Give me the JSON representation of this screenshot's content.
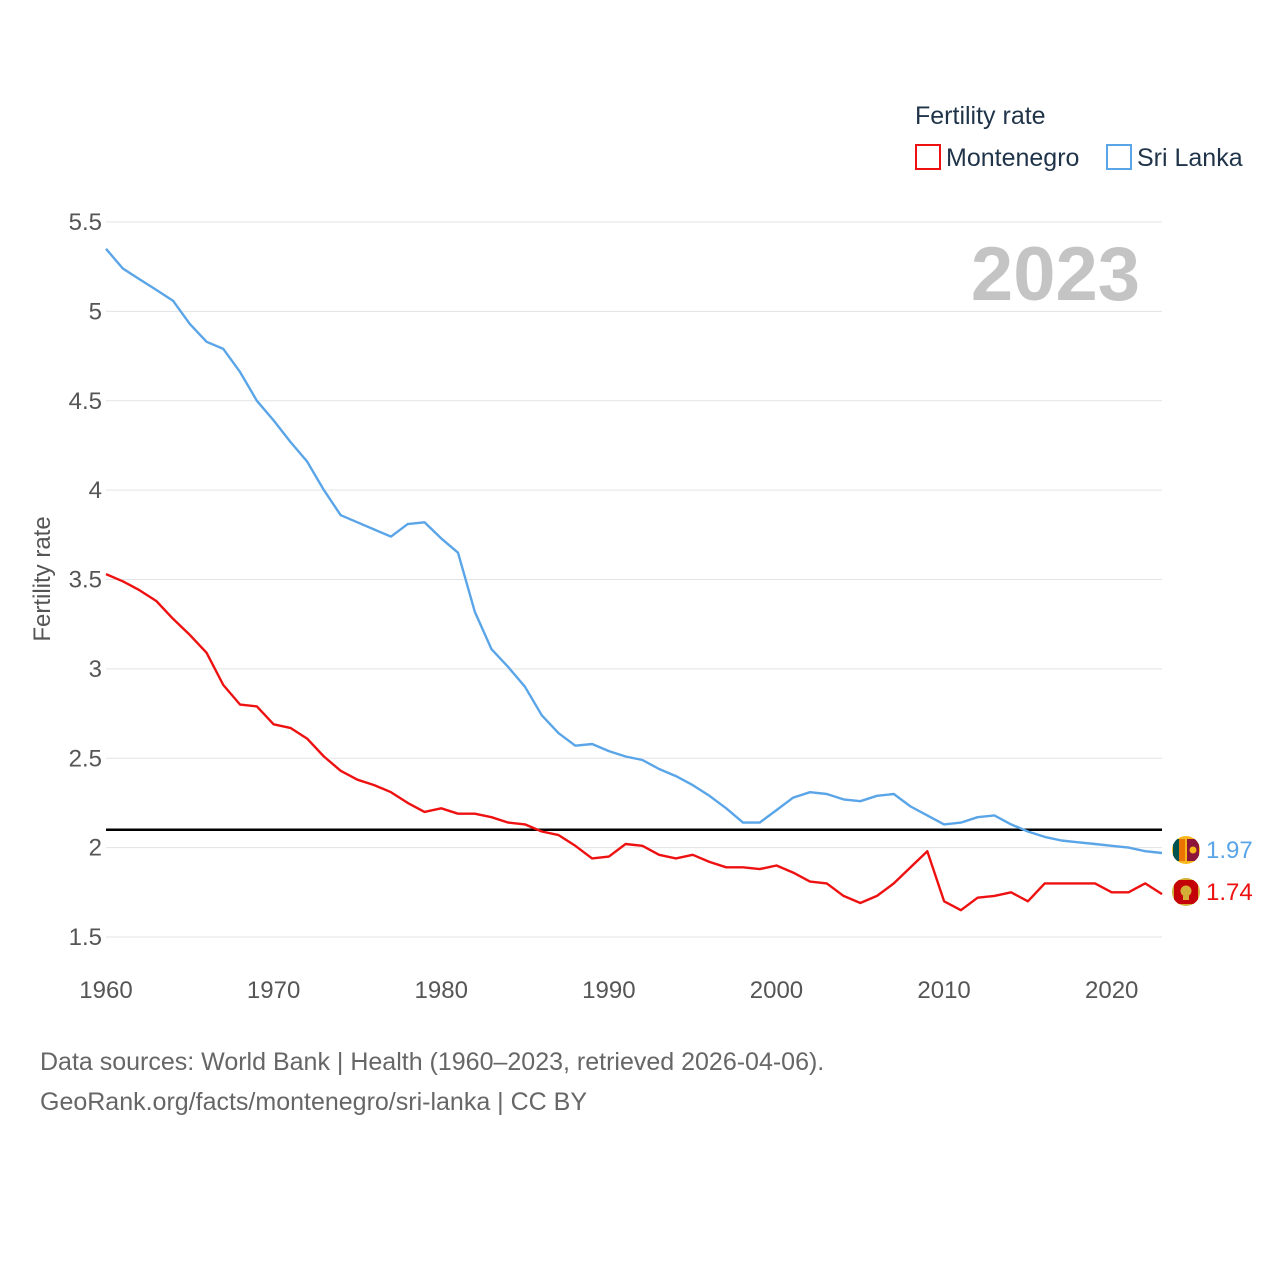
{
  "chart_data": {
    "type": "line",
    "title": "Fertility rate",
    "ylabel": "Fertility rate",
    "xlabel": "",
    "xlim": [
      1960,
      2023
    ],
    "ylim": [
      1.5,
      5.5
    ],
    "yticks": [
      1.5,
      2,
      2.5,
      3,
      3.5,
      4,
      4.5,
      5,
      5.5
    ],
    "ytick_labels": [
      "1.5",
      "2",
      "2.5",
      "3",
      "3.5",
      "4",
      "4.5",
      "5",
      "5.5"
    ],
    "xticks": [
      1960,
      1970,
      1980,
      1990,
      2000,
      2010,
      2020
    ],
    "xtick_labels": [
      "1960",
      "1970",
      "1980",
      "1990",
      "2000",
      "2010",
      "2020"
    ],
    "grid": true,
    "legend_position": "top-right",
    "year_label": "2023",
    "reference_line": {
      "y": 2.1,
      "color": "#000000"
    },
    "x": [
      1960,
      1961,
      1962,
      1963,
      1964,
      1965,
      1966,
      1967,
      1968,
      1969,
      1970,
      1971,
      1972,
      1973,
      1974,
      1975,
      1976,
      1977,
      1978,
      1979,
      1980,
      1981,
      1982,
      1983,
      1984,
      1985,
      1986,
      1987,
      1988,
      1989,
      1990,
      1991,
      1992,
      1993,
      1994,
      1995,
      1996,
      1997,
      1998,
      1999,
      2000,
      2001,
      2002,
      2003,
      2004,
      2005,
      2006,
      2007,
      2008,
      2009,
      2010,
      2011,
      2012,
      2013,
      2014,
      2015,
      2016,
      2017,
      2018,
      2019,
      2020,
      2021,
      2022,
      2023
    ],
    "series": [
      {
        "name": "Montenegro",
        "color": "#ee1111",
        "end_label": "1.74",
        "values": [
          3.53,
          3.49,
          3.44,
          3.38,
          3.28,
          3.19,
          3.09,
          2.91,
          2.8,
          2.79,
          2.69,
          2.67,
          2.61,
          2.51,
          2.43,
          2.38,
          2.35,
          2.31,
          2.25,
          2.2,
          2.22,
          2.19,
          2.19,
          2.17,
          2.14,
          2.13,
          2.09,
          2.07,
          2.01,
          1.94,
          1.95,
          2.02,
          2.01,
          1.96,
          1.94,
          1.96,
          1.92,
          1.89,
          1.89,
          1.88,
          1.9,
          1.86,
          1.81,
          1.8,
          1.73,
          1.69,
          1.73,
          1.8,
          1.89,
          1.98,
          1.7,
          1.65,
          1.72,
          1.73,
          1.75,
          1.7,
          1.8,
          1.8,
          1.8,
          1.8,
          1.75,
          1.75,
          1.8,
          1.74
        ]
      },
      {
        "name": "Sri Lanka",
        "color": "#5aa5e8",
        "end_label": "1.97",
        "values": [
          5.35,
          5.24,
          5.18,
          5.12,
          5.06,
          4.93,
          4.83,
          4.79,
          4.66,
          4.5,
          4.39,
          4.27,
          4.16,
          4.0,
          3.86,
          3.82,
          3.78,
          3.74,
          3.81,
          3.82,
          3.73,
          3.65,
          3.32,
          3.11,
          3.01,
          2.9,
          2.74,
          2.64,
          2.57,
          2.58,
          2.54,
          2.51,
          2.49,
          2.44,
          2.4,
          2.35,
          2.29,
          2.22,
          2.14,
          2.14,
          2.21,
          2.28,
          2.31,
          2.3,
          2.27,
          2.26,
          2.29,
          2.3,
          2.23,
          2.18,
          2.13,
          2.14,
          2.17,
          2.18,
          2.13,
          2.09,
          2.06,
          2.04,
          2.03,
          2.02,
          2.01,
          2.0,
          1.98,
          1.97
        ]
      }
    ]
  },
  "footer": {
    "line1": "Data sources: World Bank | Health (1960–2023, retrieved 2026-04-06).",
    "line2": "GeoRank.org/facts/montenegro/sri-lanka | CC BY"
  }
}
